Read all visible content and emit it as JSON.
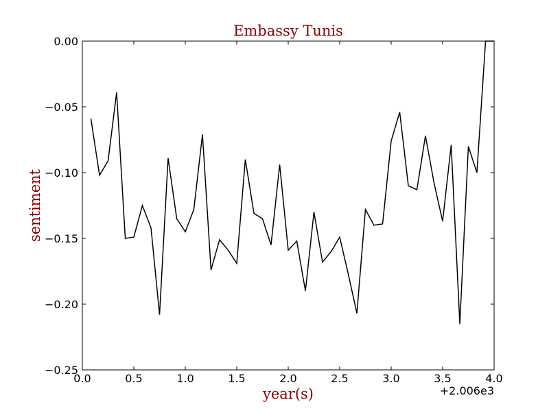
{
  "chart_data": {
    "type": "line",
    "title": "Embassy Tunis",
    "xlabel": "year(s)",
    "ylabel": "sentiment",
    "x_offset_label": "+2.006e3",
    "xlim": [
      0.0,
      4.0
    ],
    "ylim": [
      -0.25,
      0.0
    ],
    "x_ticks": [
      0.0,
      0.5,
      1.0,
      1.5,
      2.0,
      2.5,
      3.0,
      3.5,
      4.0
    ],
    "x_tick_labels": [
      "0.0",
      "0.5",
      "1.0",
      "1.5",
      "2.0",
      "2.5",
      "3.0",
      "3.5",
      "4.0"
    ],
    "y_ticks": [
      0.0,
      -0.05,
      -0.1,
      -0.15,
      -0.2,
      -0.25
    ],
    "y_tick_labels": [
      "0.00",
      "−0.05",
      "−0.10",
      "−0.15",
      "−0.20",
      "−0.25"
    ],
    "grid": false,
    "legend": "none",
    "title_color": "#8b0000",
    "label_color": "#8b0000",
    "line_color": "#000000",
    "x": [
      0.083,
      0.167,
      0.25,
      0.333,
      0.417,
      0.5,
      0.583,
      0.667,
      0.75,
      0.833,
      0.917,
      1.0,
      1.083,
      1.167,
      1.25,
      1.333,
      1.417,
      1.5,
      1.583,
      1.667,
      1.75,
      1.833,
      1.917,
      2.0,
      2.083,
      2.167,
      2.25,
      2.333,
      2.417,
      2.5,
      2.583,
      2.667,
      2.75,
      2.833,
      2.917,
      3.0,
      3.083,
      3.167,
      3.25,
      3.333,
      3.417,
      3.5,
      3.583,
      3.667,
      3.75,
      3.833,
      3.917,
      4.0
    ],
    "y": [
      -0.059,
      -0.102,
      -0.091,
      -0.039,
      -0.15,
      -0.149,
      -0.125,
      -0.142,
      -0.208,
      -0.089,
      -0.135,
      -0.145,
      -0.128,
      -0.071,
      -0.174,
      -0.151,
      -0.159,
      -0.169,
      -0.09,
      -0.131,
      -0.135,
      -0.155,
      -0.094,
      -0.159,
      -0.152,
      -0.19,
      -0.13,
      -0.168,
      -0.16,
      -0.149,
      -0.177,
      -0.207,
      -0.128,
      -0.14,
      -0.139,
      -0.076,
      -0.054,
      -0.11,
      -0.113,
      -0.072,
      -0.108,
      -0.137,
      -0.079,
      -0.215,
      -0.08,
      -0.1,
      0.0,
      0.0
    ]
  }
}
